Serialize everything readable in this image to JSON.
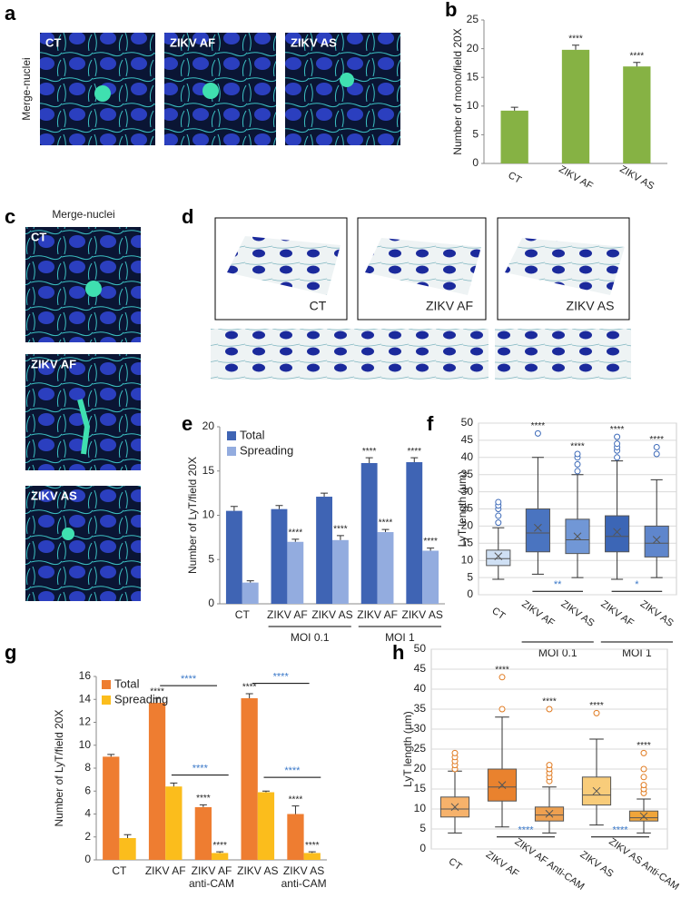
{
  "image_panels": {
    "a": {
      "panel": "a",
      "side_label": "Merge-nuclei",
      "images": [
        "CT",
        "ZIKV AF",
        "ZIKV AS"
      ]
    },
    "c": {
      "panel": "c",
      "top_label": "Merge-nuclei",
      "images": [
        "CT",
        "ZIKV AF",
        "ZIKV AS"
      ]
    },
    "d": {
      "panel": "d",
      "images": [
        "CT",
        "ZIKV AF",
        "ZIKV AS"
      ]
    }
  },
  "chart_data": [
    {
      "panel": "b",
      "type": "bar",
      "ylabel": "Number of mono/field 20X",
      "categories": [
        "CT",
        "ZIKV AF",
        "ZIKV AS"
      ],
      "series": [
        {
          "color": "#86b244",
          "values": [
            9.2,
            19.8,
            16.9
          ],
          "errors": [
            0.6,
            0.8,
            0.7
          ],
          "annotations": [
            null,
            "****",
            "****"
          ]
        }
      ],
      "ylim": [
        0,
        25
      ],
      "yticks": [
        0,
        5,
        10,
        15,
        20,
        25
      ],
      "grid": false
    },
    {
      "panel": "e",
      "type": "bar",
      "ylabel": "Number of LyT/field 20X",
      "categories": [
        "CT",
        "ZIKV AF",
        "ZIKV AS",
        "ZIKV AF",
        "ZIKV AS"
      ],
      "groups": [
        {
          "name": "MOI 0.1"
        },
        {
          "name": "MOI 1"
        }
      ],
      "series": [
        {
          "name": "Total",
          "color": "#3f64b4",
          "values": [
            10.5,
            10.7,
            12.1,
            15.9,
            16.0
          ],
          "errors": [
            0.5,
            0.4,
            0.4,
            0.6,
            0.5
          ],
          "annotations": [
            null,
            null,
            null,
            "****",
            "****"
          ]
        },
        {
          "name": "Spreading",
          "color": "#93acdf",
          "values": [
            2.4,
            7.0,
            7.2,
            8.1,
            6.0
          ],
          "errors": [
            0.2,
            0.3,
            0.5,
            0.3,
            0.3
          ],
          "annotations": [
            null,
            "****",
            "****",
            "****",
            "****"
          ]
        }
      ],
      "ylim": [
        0,
        20
      ],
      "yticks": [
        0,
        5,
        10,
        15,
        20
      ],
      "grid": false
    },
    {
      "panel": "f",
      "type": "box",
      "ylabel": "LyT length (μm)",
      "categories": [
        "CT",
        "ZIKV AF",
        "ZIKV AS",
        "ZIKV AF",
        "ZIKV AS"
      ],
      "groups": [
        {
          "name": "MOI 0.1"
        },
        {
          "name": "MOI 1"
        }
      ],
      "boxes": [
        {
          "color": "#cfe0f4",
          "min": 4.5,
          "q1": 8.5,
          "median": 10.5,
          "q3": 13,
          "max": 19.5,
          "mean": 11.2,
          "outliers": [
            21,
            23,
            25,
            26,
            27
          ]
        },
        {
          "color": "#4a74c0",
          "min": 6,
          "q1": 12.5,
          "median": 18,
          "q3": 25,
          "max": 40,
          "mean": 19.5,
          "outliers": [
            47
          ]
        },
        {
          "color": "#7197d6",
          "min": 5,
          "q1": 12,
          "median": 16,
          "q3": 22,
          "max": 35,
          "mean": 17,
          "outliers": [
            36,
            38,
            40,
            41
          ]
        },
        {
          "color": "#3c66b6",
          "min": 4.5,
          "q1": 12.5,
          "median": 17,
          "q3": 23,
          "max": 39,
          "mean": 18.3,
          "outliers": [
            40,
            42,
            43,
            44,
            46
          ]
        },
        {
          "color": "#5f86cc",
          "min": 5,
          "q1": 11,
          "median": 15,
          "q3": 20,
          "max": 33.5,
          "mean": 16,
          "outliers": [
            41,
            43
          ]
        }
      ],
      "annotations": [
        null,
        "****",
        "****",
        "****",
        "****"
      ],
      "brackets": [
        "**",
        "*"
      ],
      "bracket_color": "#3a78c8",
      "outlier_color": "#3d6ab8",
      "ylim": [
        0,
        50
      ],
      "yticks": [
        0,
        5,
        10,
        15,
        20,
        25,
        30,
        35,
        40,
        45,
        50
      ],
      "grid": true
    },
    {
      "panel": "g",
      "type": "bar",
      "ylabel": "Number of LyT/field 20X",
      "categories": [
        "CT",
        "ZIKV AF",
        "ZIKV AF anti-CAM",
        "ZIKV AS",
        "ZIKV AS anti-CAM"
      ],
      "series": [
        {
          "name": "Total",
          "color": "#ee7d31",
          "values": [
            9.0,
            13.7,
            4.6,
            14.1,
            4.0
          ],
          "errors": [
            0.2,
            0.4,
            0.2,
            0.4,
            0.7
          ],
          "annotations": [
            null,
            "****",
            "****",
            "****",
            "****"
          ]
        },
        {
          "name": "Spreading",
          "color": "#fbbd1c",
          "values": [
            1.9,
            6.4,
            0.6,
            5.9,
            0.6
          ],
          "errors": [
            0.3,
            0.3,
            0.1,
            0.1,
            0.1
          ],
          "annotations": [
            null,
            null,
            "****",
            null,
            "****"
          ]
        }
      ],
      "brackets": [
        "****",
        "****",
        "****",
        "****"
      ],
      "bracket_color": "#3a78c8",
      "ylim": [
        0,
        16
      ],
      "yticks": [
        0,
        2,
        4,
        6,
        8,
        10,
        12,
        14,
        16
      ],
      "grid": false
    },
    {
      "panel": "h",
      "type": "box",
      "ylabel": "LyT length (μm)",
      "categories": [
        "CT",
        "ZIKV AF",
        "ZIKV AF Anti-CAM",
        "ZIKV AS",
        "ZIKV AS Anti-CAM"
      ],
      "boxes": [
        {
          "color": "#f6b26b",
          "min": 4,
          "q1": 8,
          "median": 10,
          "q3": 13,
          "max": 19.5,
          "mean": 10.5,
          "outliers": [
            20,
            21,
            22,
            23,
            24
          ]
        },
        {
          "color": "#e9822e",
          "min": 5.5,
          "q1": 12,
          "median": 15.5,
          "q3": 20,
          "max": 33,
          "mean": 16,
          "outliers": [
            35,
            43
          ]
        },
        {
          "color": "#eea050",
          "min": 4,
          "q1": 7,
          "median": 8.5,
          "q3": 10.5,
          "max": 15.5,
          "mean": 8.8,
          "outliers": [
            17,
            18,
            19,
            20,
            21,
            35
          ]
        },
        {
          "color": "#f8cc7a",
          "min": 6,
          "q1": 11,
          "median": 13.5,
          "q3": 18,
          "max": 27.5,
          "mean": 14.5,
          "outliers": [
            34
          ]
        },
        {
          "color": "#f0a53a",
          "min": 4,
          "q1": 7,
          "median": 7.8,
          "q3": 9.5,
          "max": 12.5,
          "mean": 8.2,
          "outliers": [
            14,
            15,
            16,
            18,
            20,
            24
          ]
        }
      ],
      "annotations": [
        null,
        "****",
        "****",
        "****",
        "****"
      ],
      "brackets": [
        "****",
        "****"
      ],
      "bracket_color": "#3a78c8",
      "outlier_color": "#e07a20",
      "ylim": [
        0,
        50
      ],
      "yticks": [
        0,
        5,
        10,
        15,
        20,
        25,
        30,
        35,
        40,
        45,
        50
      ],
      "grid": true
    }
  ]
}
